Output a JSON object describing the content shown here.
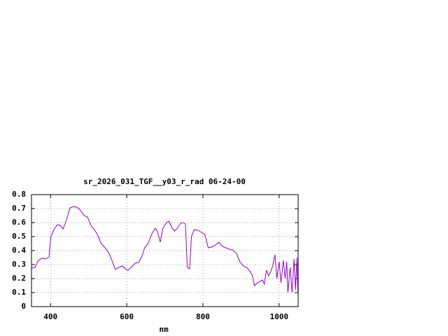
{
  "chart_data": {
    "type": "line",
    "title": "sr_2026_031_TGF__y03_r_rad 06-24-00",
    "x_label": "nm",
    "x": [
      350,
      359,
      368,
      378,
      387,
      396,
      401,
      409,
      418,
      425,
      433,
      442,
      451,
      460,
      469,
      478,
      488,
      497,
      506,
      515,
      524,
      533,
      543,
      552,
      561,
      570,
      579,
      589,
      596,
      603,
      612,
      622,
      631,
      640,
      647,
      656,
      666,
      675,
      680,
      688,
      695,
      704,
      711,
      719,
      726,
      733,
      741,
      748,
      754,
      759,
      765,
      770,
      777,
      787,
      796,
      805,
      814,
      823,
      833,
      842,
      851,
      860,
      869,
      878,
      888,
      897,
      906,
      915,
      924,
      930,
      935,
      943,
      950,
      957,
      961,
      967,
      972,
      978,
      983,
      989,
      994,
      1000,
      1005,
      1011,
      1016,
      1020,
      1023,
      1029,
      1034,
      1039,
      1043,
      1047,
      1049
    ],
    "series": [
      {
        "color": "#9400d3",
        "values": [
          0.275,
          0.28,
          0.33,
          0.345,
          0.34,
          0.355,
          0.5,
          0.55,
          0.585,
          0.58,
          0.555,
          0.62,
          0.705,
          0.715,
          0.71,
          0.69,
          0.65,
          0.64,
          0.58,
          0.55,
          0.51,
          0.45,
          0.42,
          0.39,
          0.33,
          0.265,
          0.28,
          0.29,
          0.27,
          0.26,
          0.28,
          0.31,
          0.315,
          0.36,
          0.42,
          0.45,
          0.52,
          0.56,
          0.54,
          0.46,
          0.56,
          0.6,
          0.61,
          0.56,
          0.54,
          0.56,
          0.595,
          0.6,
          0.59,
          0.28,
          0.27,
          0.5,
          0.55,
          0.545,
          0.53,
          0.515,
          0.42,
          0.425,
          0.44,
          0.46,
          0.43,
          0.42,
          0.41,
          0.405,
          0.38,
          0.32,
          0.29,
          0.28,
          0.25,
          0.22,
          0.15,
          0.17,
          0.18,
          0.19,
          0.16,
          0.26,
          0.22,
          0.25,
          0.29,
          0.37,
          0.2,
          0.32,
          0.17,
          0.33,
          0.2,
          0.32,
          0.1,
          0.28,
          0.1,
          0.34,
          0.12,
          0.35,
          0.1
        ]
      }
    ],
    "xlim": [
      350,
      1050
    ],
    "xticks": [
      400,
      600,
      800,
      1000
    ],
    "ylim": [
      0,
      0.8
    ],
    "yticks": [
      0,
      0.1,
      0.2,
      0.3,
      0.4,
      0.5,
      0.6,
      0.7,
      0.8
    ],
    "grid": true
  }
}
